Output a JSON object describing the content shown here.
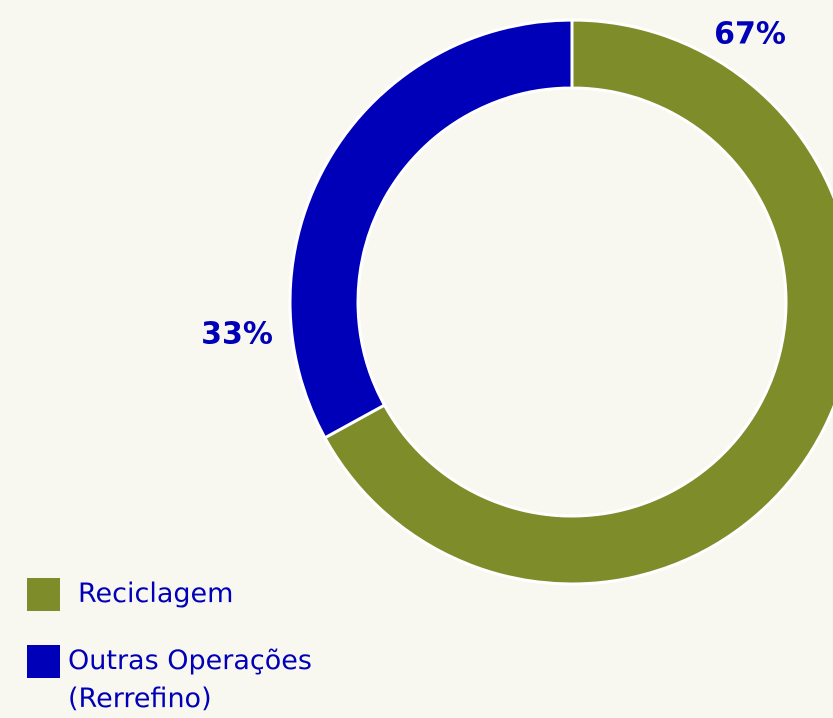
{
  "chart_data": {
    "type": "donut",
    "categories": [
      "Reciclagem",
      "Outras Operações (Rerrefino)"
    ],
    "values": [
      67,
      33
    ],
    "value_labels": [
      "67%",
      "33%"
    ],
    "colors": [
      "#7f8c2a",
      "#0000b8"
    ],
    "legend": "bottom-left"
  }
}
